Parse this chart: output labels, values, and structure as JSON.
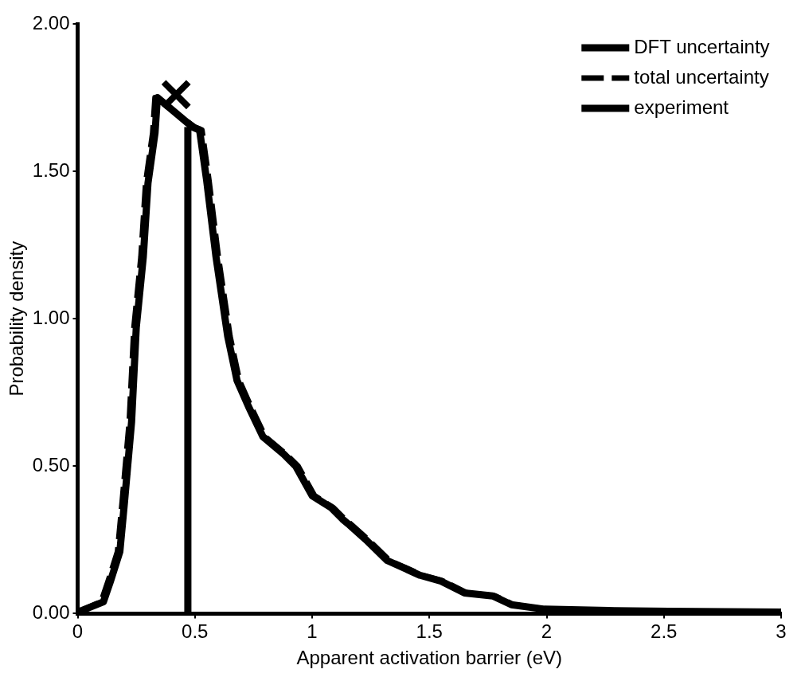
{
  "chart_data": {
    "type": "line",
    "xlabel": "Apparent activation barrier (eV)",
    "ylabel": "Probability density",
    "xlim": [
      0,
      3
    ],
    "xticks": [
      0,
      0.5,
      1,
      1.5,
      2,
      2.5,
      3
    ],
    "ylim": [
      0,
      2
    ],
    "yticks": [
      {
        "value": 0,
        "label": "0.00"
      },
      {
        "value": 0.5,
        "label": "0.50"
      },
      {
        "value": 1,
        "label": "1.00"
      },
      {
        "value": 1.5,
        "label": "1.50"
      },
      {
        "value": 2,
        "label": "2.00"
      }
    ],
    "grid": false,
    "legend": "top right",
    "marker": "none",
    "series": [
      {
        "name": "DFT uncertainty",
        "color": "#000000",
        "line_style": "solid",
        "x": [
          0,
          0.11,
          0.14,
          0.18,
          0.2,
          0.23,
          0.25,
          0.28,
          0.3,
          0.33,
          0.34,
          0.49,
          0.52,
          0.55,
          0.59,
          0.64,
          0.68,
          0.73,
          0.79,
          0.88,
          0.93,
          1.0,
          1.08,
          1.13,
          1.16,
          1.23,
          1.32,
          1.46,
          1.55,
          1.65,
          1.77,
          1.85,
          1.99,
          2.29,
          2.52,
          3.0
        ],
        "values": [
          0.005,
          0.04,
          0.11,
          0.21,
          0.38,
          0.65,
          0.97,
          1.21,
          1.46,
          1.63,
          1.75,
          1.65,
          1.64,
          1.47,
          1.21,
          0.94,
          0.79,
          0.7,
          0.6,
          0.54,
          0.5,
          0.4,
          0.36,
          0.32,
          0.3,
          0.25,
          0.18,
          0.13,
          0.11,
          0.07,
          0.06,
          0.03,
          0.015,
          0.01,
          0.008,
          0.005
        ]
      },
      {
        "name": "total uncertainty",
        "color": "#000000",
        "line_style": "dashed",
        "x": [
          0,
          0.1,
          0.13,
          0.17,
          0.19,
          0.22,
          0.24,
          0.27,
          0.29,
          0.32,
          0.33,
          0.5,
          0.53,
          0.56,
          0.6,
          0.65,
          0.69,
          0.74,
          0.8,
          0.89,
          0.94,
          1.01,
          1.09,
          1.14,
          1.17,
          1.24,
          1.33,
          1.47,
          1.56,
          1.66,
          1.78,
          1.86,
          2.0,
          2.3,
          2.53,
          3.0
        ],
        "values": [
          0.005,
          0.04,
          0.11,
          0.21,
          0.38,
          0.65,
          0.97,
          1.21,
          1.46,
          1.63,
          1.75,
          1.65,
          1.64,
          1.47,
          1.21,
          0.94,
          0.79,
          0.7,
          0.6,
          0.54,
          0.5,
          0.4,
          0.36,
          0.32,
          0.3,
          0.25,
          0.18,
          0.13,
          0.11,
          0.07,
          0.06,
          0.03,
          0.015,
          0.01,
          0.008,
          0.005
        ]
      },
      {
        "name": "experiment",
        "color": "#000000",
        "line_style": "solid",
        "x": [
          0.47,
          0.47
        ],
        "values": [
          0,
          1.65
        ]
      },
      {
        "type": "scatter",
        "marker": "cross",
        "color": "#000000",
        "x": [
          0.42
        ],
        "values": [
          1.76
        ]
      }
    ]
  }
}
